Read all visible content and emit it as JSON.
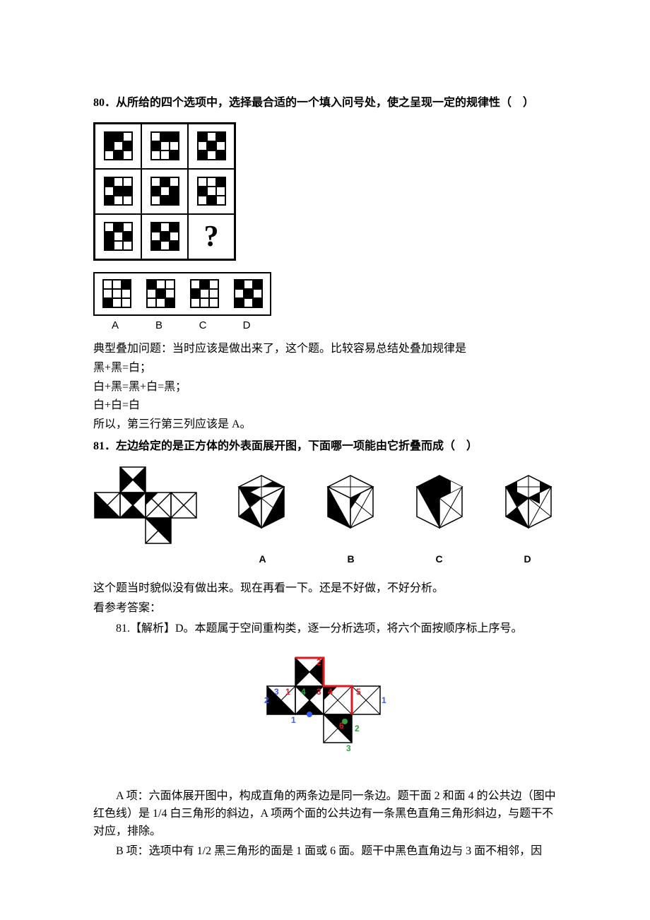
{
  "q80": {
    "stem": "80．从所给的四个选项中，选择最合适的一个填入问号处，使之呈现一定的规律性（　）",
    "grid": [
      [
        [
          1,
          1,
          0,
          1,
          0,
          1,
          0,
          1,
          0
        ],
        [
          0,
          1,
          1,
          1,
          0,
          0,
          0,
          0,
          1
        ],
        [
          1,
          0,
          1,
          0,
          1,
          0,
          1,
          0,
          1
        ]
      ],
      [
        [
          1,
          0,
          0,
          0,
          1,
          1,
          1,
          0,
          0
        ],
        [
          0,
          1,
          0,
          1,
          0,
          1,
          0,
          1,
          1
        ],
        [
          0,
          0,
          1,
          1,
          0,
          0,
          0,
          1,
          0
        ]
      ],
      [
        [
          0,
          1,
          0,
          1,
          0,
          1,
          1,
          0,
          0
        ],
        [
          1,
          0,
          1,
          0,
          1,
          0,
          1,
          0,
          1
        ],
        "?"
      ]
    ],
    "options": {
      "A": [
        0,
        0,
        1,
        0,
        0,
        0,
        1,
        0,
        0
      ],
      "B": [
        1,
        0,
        0,
        0,
        1,
        0,
        0,
        0,
        1
      ],
      "C": [
        0,
        1,
        0,
        1,
        0,
        0,
        0,
        0,
        0
      ],
      "D": [
        1,
        0,
        1,
        0,
        1,
        0,
        1,
        0,
        1
      ]
    },
    "option_labels": [
      "A",
      "B",
      "C",
      "D"
    ],
    "expl_line1": "典型叠加问题：当时应该是做出来了，这个题。比较容易总结处叠加规律是",
    "expl_line2": "黑+黑=白；",
    "expl_line3": "白+黑=黑+白=黑；",
    "expl_line4": "白+白=白",
    "expl_line5": "所以，第三行第三列应该是 A。"
  },
  "q81": {
    "stem": "81．左边给定的是正方体的外表面展开图，下面哪一项能由它折叠而成（　）",
    "option_labels": [
      "A",
      "B",
      "C",
      "D"
    ],
    "note1": "这个题当时貌似没有做出来。现在再看一下。还是不好做，不好分析。",
    "note2": "看参考答案：",
    "analysis_title": "81.【解析】D。本题属于空间重构类，逐一分析选项，将六个面按顺序标上序号。",
    "analysis_A": "A 项：六面体展开图中，构成直角的两条边是同一条边。题干面 2 和面 4 的公共边（图中红色线）是 1/4 白三角形的斜边，A 项两个面的公共边有一条黑色直角三角形斜边，与题干不对应，排除。",
    "analysis_B": "B 项：选项中有 1/2 黑三角形的面是 1 面或 6 面。题干中黑色直角边与 3 面不相邻，因",
    "colors": {
      "black": "#000000",
      "white": "#ffffff",
      "red": "#e3151f",
      "blue": "#3a59ff",
      "green": "#2fa245"
    },
    "face_numbers": [
      "1",
      "2",
      "3",
      "4",
      "5",
      "6"
    ],
    "small_numbers": [
      "1",
      "2",
      "3",
      "4"
    ]
  }
}
